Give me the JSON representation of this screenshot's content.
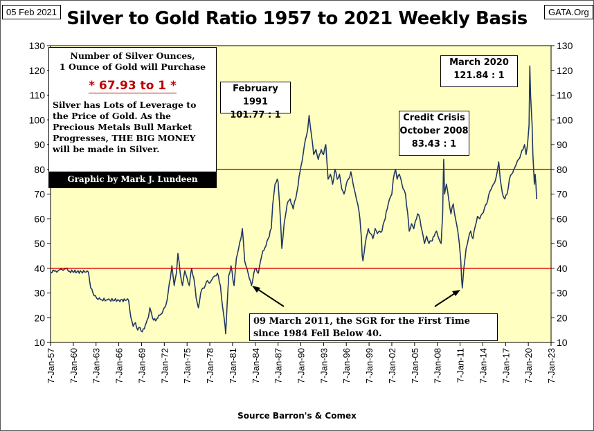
{
  "header": {
    "date": "05 Feb 2021",
    "site": "GATA.Org"
  },
  "footer": {
    "source": "Source Barron's & Comex"
  },
  "colors": {
    "plot_bg": "#FFFFC1",
    "line": "#1F3864",
    "ref_line": "#E00000",
    "ratio_text": "#C00000"
  },
  "info_box": {
    "heading_1": "Number of Silver Ounces,",
    "heading_2": "1 Ounce of Gold will Purchase",
    "ratio": "* 67.93 to 1 *",
    "body": [
      "Silver has Lots of Leverage to",
      "the Price of Gold.  As the",
      "Precious Metals Bull Market",
      "Progresses,  THE BIG MONEY",
      "will be made in Silver."
    ],
    "credit": "Graphic by Mark J. Lundeen"
  },
  "annotations": {
    "feb1991": {
      "line1": "February 1991",
      "line2": "101.77 : 1"
    },
    "credit_crisis": {
      "line1": "Credit Crisis",
      "line2": "October 2008",
      "line3": "83.43 : 1"
    },
    "march2020": {
      "line1": "March 2020",
      "line2": "121.84 : 1"
    },
    "sgr2011": {
      "line1": "09 March 2011, the SGR for the First Time",
      "line2": "since 1984 Fell Below 40."
    }
  },
  "chart_data": {
    "type": "line",
    "title": "Silver to Gold Ratio 1957 to 2021 Weekly Basis",
    "xlabel": "",
    "ylabel": "",
    "ylim": [
      10,
      130
    ],
    "yticks": [
      10,
      20,
      30,
      40,
      50,
      60,
      70,
      80,
      90,
      100,
      110,
      120,
      130
    ],
    "xlim": [
      1957.0,
      2023.0
    ],
    "xticks": [
      "7-Jan-57",
      "7-Jan-60",
      "7-Jan-63",
      "7-Jan-66",
      "7-Jan-69",
      "7-Jan-72",
      "7-Jan-75",
      "7-Jan-78",
      "7-Jan-81",
      "7-Jan-84",
      "7-Jan-87",
      "7-Jan-90",
      "7-Jan-93",
      "7-Jan-96",
      "7-Jan-99",
      "7-Jan-02",
      "7-Jan-05",
      "7-Jan-08",
      "7-Jan-11",
      "7-Jan-14",
      "7-Jan-17",
      "7-Jan-20",
      "7-Jan-23"
    ],
    "reference_lines": [
      80,
      40
    ],
    "grid": false,
    "series": [
      {
        "points": [
          [
            1957.0,
            38.5
          ],
          [
            1957.5,
            38.8
          ],
          [
            1958.0,
            39.0
          ],
          [
            1958.5,
            39.5
          ],
          [
            1959.0,
            39.8
          ],
          [
            1959.5,
            38.8
          ],
          [
            1960.5,
            38.6
          ],
          [
            1961.5,
            38.5
          ],
          [
            1962.0,
            38.4
          ],
          [
            1962.3,
            32.0
          ],
          [
            1962.6,
            30.0
          ],
          [
            1962.9,
            29.0
          ],
          [
            1963.1,
            27.8
          ],
          [
            1963.6,
            27.3
          ],
          [
            1964.5,
            27.2
          ],
          [
            1966.0,
            27.1
          ],
          [
            1967.0,
            27.1
          ],
          [
            1967.3,
            27.0
          ],
          [
            1967.6,
            20.0
          ],
          [
            1967.9,
            16.5
          ],
          [
            1968.2,
            18.0
          ],
          [
            1968.5,
            15.0
          ],
          [
            1968.8,
            16.0
          ],
          [
            1969.1,
            14.3
          ],
          [
            1969.5,
            17.0
          ],
          [
            1969.9,
            20.0
          ],
          [
            1970.1,
            24.0
          ],
          [
            1970.3,
            22.0
          ],
          [
            1970.6,
            19.0
          ],
          [
            1971.0,
            19.5
          ],
          [
            1971.4,
            21.0
          ],
          [
            1971.8,
            22.5
          ],
          [
            1972.2,
            25.0
          ],
          [
            1972.5,
            30.0
          ],
          [
            1972.8,
            36.0
          ],
          [
            1973.0,
            41.0
          ],
          [
            1973.3,
            33.0
          ],
          [
            1973.6,
            38.0
          ],
          [
            1973.8,
            46.0
          ],
          [
            1974.1,
            38.0
          ],
          [
            1974.4,
            33.0
          ],
          [
            1974.7,
            39.0
          ],
          [
            1975.0,
            36.0
          ],
          [
            1975.3,
            33.0
          ],
          [
            1975.6,
            40.0
          ],
          [
            1975.9,
            36.0
          ],
          [
            1976.2,
            28.0
          ],
          [
            1976.5,
            24.0
          ],
          [
            1976.8,
            30.0
          ],
          [
            1977.1,
            32.0
          ],
          [
            1977.4,
            33.0
          ],
          [
            1977.7,
            35.0
          ],
          [
            1978.0,
            34.0
          ],
          [
            1978.3,
            35.5
          ],
          [
            1978.7,
            37.0
          ],
          [
            1979.0,
            38.0
          ],
          [
            1979.4,
            33.0
          ],
          [
            1979.7,
            24.0
          ],
          [
            1980.0,
            17.0
          ],
          [
            1980.1,
            13.5
          ],
          [
            1980.3,
            26.0
          ],
          [
            1980.5,
            37.0
          ],
          [
            1980.8,
            41.0
          ],
          [
            1981.2,
            33.0
          ],
          [
            1981.5,
            44.0
          ],
          [
            1981.8,
            48.0
          ],
          [
            1982.1,
            52.0
          ],
          [
            1982.3,
            56.0
          ],
          [
            1982.6,
            43.0
          ],
          [
            1982.9,
            40.0
          ],
          [
            1983.2,
            36.0
          ],
          [
            1983.5,
            33.0
          ],
          [
            1983.8,
            38.0
          ],
          [
            1984.1,
            40.0
          ],
          [
            1984.4,
            38.0
          ],
          [
            1984.7,
            43.0
          ],
          [
            1985.0,
            47.0
          ],
          [
            1985.4,
            49.0
          ],
          [
            1985.7,
            52.0
          ],
          [
            1986.1,
            56.0
          ],
          [
            1986.3,
            66.0
          ],
          [
            1986.6,
            74.0
          ],
          [
            1986.9,
            76.0
          ],
          [
            1987.0,
            75.0
          ],
          [
            1987.2,
            66.0
          ],
          [
            1987.5,
            48.0
          ],
          [
            1987.8,
            58.0
          ],
          [
            1988.2,
            66.0
          ],
          [
            1988.6,
            68.0
          ],
          [
            1989.0,
            64.0
          ],
          [
            1989.5,
            71.0
          ],
          [
            1989.9,
            79.0
          ],
          [
            1990.3,
            86.0
          ],
          [
            1990.6,
            92.0
          ],
          [
            1990.9,
            96.0
          ],
          [
            1991.1,
            101.8
          ],
          [
            1991.4,
            94.0
          ],
          [
            1991.7,
            86.0
          ],
          [
            1992.0,
            88.0
          ],
          [
            1992.3,
            84.0
          ],
          [
            1992.7,
            88.0
          ],
          [
            1993.0,
            86.0
          ],
          [
            1993.3,
            90.0
          ],
          [
            1993.6,
            76.0
          ],
          [
            1993.9,
            78.0
          ],
          [
            1994.2,
            74.0
          ],
          [
            1994.5,
            80.0
          ],
          [
            1994.8,
            76.0
          ],
          [
            1995.1,
            78.0
          ],
          [
            1995.4,
            72.0
          ],
          [
            1995.7,
            70.0
          ],
          [
            1996.0,
            74.0
          ],
          [
            1996.3,
            76.0
          ],
          [
            1996.6,
            79.0
          ],
          [
            1996.9,
            74.0
          ],
          [
            1997.2,
            70.0
          ],
          [
            1997.5,
            66.0
          ],
          [
            1997.8,
            60.0
          ],
          [
            1998.0,
            52.0
          ],
          [
            1998.1,
            45.0
          ],
          [
            1998.2,
            43.0
          ],
          [
            1998.5,
            50.0
          ],
          [
            1998.9,
            56.0
          ],
          [
            1999.2,
            54.0
          ],
          [
            1999.5,
            52.0
          ],
          [
            1999.8,
            56.0
          ],
          [
            2000.1,
            54.0
          ],
          [
            2000.4,
            55.0
          ],
          [
            2000.7,
            55.0
          ],
          [
            2001.0,
            59.0
          ],
          [
            2001.4,
            64.0
          ],
          [
            2001.7,
            68.0
          ],
          [
            2002.0,
            70.0
          ],
          [
            2002.2,
            76.0
          ],
          [
            2002.5,
            80.0
          ],
          [
            2002.7,
            76.0
          ],
          [
            2003.0,
            78.0
          ],
          [
            2003.2,
            76.0
          ],
          [
            2003.5,
            72.0
          ],
          [
            2003.8,
            70.0
          ],
          [
            2004.1,
            62.0
          ],
          [
            2004.3,
            55.0
          ],
          [
            2004.6,
            58.0
          ],
          [
            2004.9,
            56.0
          ],
          [
            2005.1,
            59.0
          ],
          [
            2005.4,
            62.0
          ],
          [
            2005.7,
            60.0
          ],
          [
            2006.0,
            55.0
          ],
          [
            2006.3,
            50.0
          ],
          [
            2006.6,
            53.0
          ],
          [
            2006.9,
            50.0
          ],
          [
            2007.2,
            51.0
          ],
          [
            2007.6,
            53.0
          ],
          [
            2007.9,
            55.0
          ],
          [
            2008.2,
            52.0
          ],
          [
            2008.5,
            50.0
          ],
          [
            2008.7,
            62.0
          ],
          [
            2008.8,
            78.0
          ],
          [
            2008.85,
            84.0
          ],
          [
            2008.95,
            70.0
          ],
          [
            2009.2,
            74.0
          ],
          [
            2009.5,
            68.0
          ],
          [
            2009.8,
            62.0
          ],
          [
            2010.1,
            66.0
          ],
          [
            2010.4,
            60.0
          ],
          [
            2010.7,
            55.0
          ],
          [
            2010.9,
            50.0
          ],
          [
            2011.1,
            43.0
          ],
          [
            2011.2,
            36.0
          ],
          [
            2011.3,
            32.0
          ],
          [
            2011.5,
            40.0
          ],
          [
            2011.8,
            48.0
          ],
          [
            2012.1,
            52.0
          ],
          [
            2012.4,
            55.0
          ],
          [
            2012.7,
            52.0
          ],
          [
            2013.0,
            57.0
          ],
          [
            2013.3,
            61.0
          ],
          [
            2013.6,
            60.0
          ],
          [
            2013.9,
            62.0
          ],
          [
            2014.2,
            64.0
          ],
          [
            2014.5,
            66.0
          ],
          [
            2014.8,
            70.0
          ],
          [
            2015.1,
            72.0
          ],
          [
            2015.4,
            74.0
          ],
          [
            2015.7,
            76.0
          ],
          [
            2015.9,
            79.0
          ],
          [
            2016.1,
            83.0
          ],
          [
            2016.3,
            76.0
          ],
          [
            2016.6,
            70.0
          ],
          [
            2016.9,
            68.0
          ],
          [
            2017.2,
            70.0
          ],
          [
            2017.5,
            76.0
          ],
          [
            2017.8,
            78.0
          ],
          [
            2018.1,
            80.0
          ],
          [
            2018.4,
            82.0
          ],
          [
            2018.7,
            84.0
          ],
          [
            2019.0,
            86.0
          ],
          [
            2019.3,
            88.0
          ],
          [
            2019.5,
            90.0
          ],
          [
            2019.7,
            86.0
          ],
          [
            2019.9,
            90.0
          ],
          [
            2020.1,
            98.0
          ],
          [
            2020.2,
            121.8
          ],
          [
            2020.3,
            110.0
          ],
          [
            2020.5,
            98.0
          ],
          [
            2020.6,
            86.0
          ],
          [
            2020.7,
            80.0
          ],
          [
            2020.8,
            74.0
          ],
          [
            2020.9,
            78.0
          ],
          [
            2021.0,
            74.0
          ],
          [
            2021.1,
            67.9
          ]
        ]
      }
    ]
  }
}
